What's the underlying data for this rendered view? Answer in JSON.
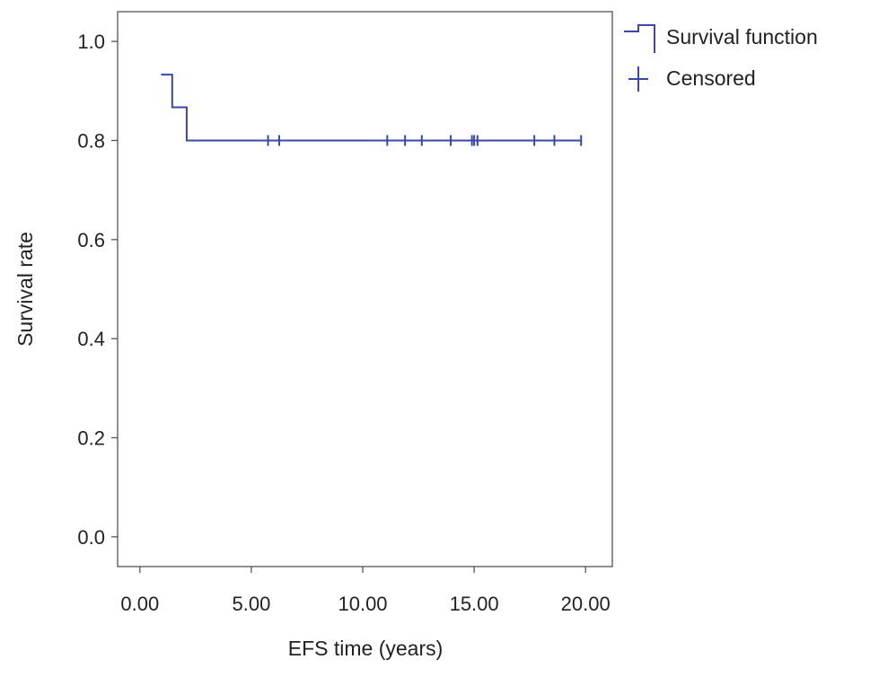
{
  "chart_data": {
    "type": "line",
    "subtype": "kaplan-meier",
    "xlabel": "EFS time (years)",
    "ylabel": "Survival rate",
    "xlim": [
      -1.0,
      21.2
    ],
    "ylim": [
      -0.06,
      1.06
    ],
    "x_ticks": [
      0,
      5,
      10,
      15,
      20
    ],
    "x_tick_labels": [
      "0.00",
      "5.00",
      "10.00",
      "15.00",
      "20.00"
    ],
    "y_ticks": [
      0.0,
      0.2,
      0.4,
      0.6,
      0.8,
      1.0
    ],
    "y_tick_labels": [
      "0.0",
      "0.2",
      "0.4",
      "0.6",
      "0.8",
      "1.0"
    ],
    "grid": false,
    "legend_position": "top-right-outside",
    "series": [
      {
        "name": "Survival function",
        "color": "#3b46a8",
        "steps": [
          {
            "x": 0.95,
            "y": 0.933
          },
          {
            "x": 1.45,
            "y": 0.867
          },
          {
            "x": 2.1,
            "y": 0.8
          },
          {
            "x": 19.8,
            "y": 0.8
          }
        ]
      }
    ],
    "censored": {
      "name": "Censored",
      "color": "#3b46a8",
      "points": [
        {
          "x": 5.75,
          "y": 0.8
        },
        {
          "x": 6.25,
          "y": 0.8
        },
        {
          "x": 11.1,
          "y": 0.8
        },
        {
          "x": 11.9,
          "y": 0.8
        },
        {
          "x": 12.65,
          "y": 0.8
        },
        {
          "x": 13.95,
          "y": 0.8
        },
        {
          "x": 14.9,
          "y": 0.8
        },
        {
          "x": 15.0,
          "y": 0.8
        },
        {
          "x": 15.15,
          "y": 0.8
        },
        {
          "x": 17.7,
          "y": 0.8
        },
        {
          "x": 18.6,
          "y": 0.8
        },
        {
          "x": 19.8,
          "y": 0.8
        }
      ]
    },
    "legend": [
      {
        "label": "Survival function",
        "icon": "step-line-icon"
      },
      {
        "label": "Censored",
        "icon": "plus-tick-icon"
      }
    ]
  }
}
